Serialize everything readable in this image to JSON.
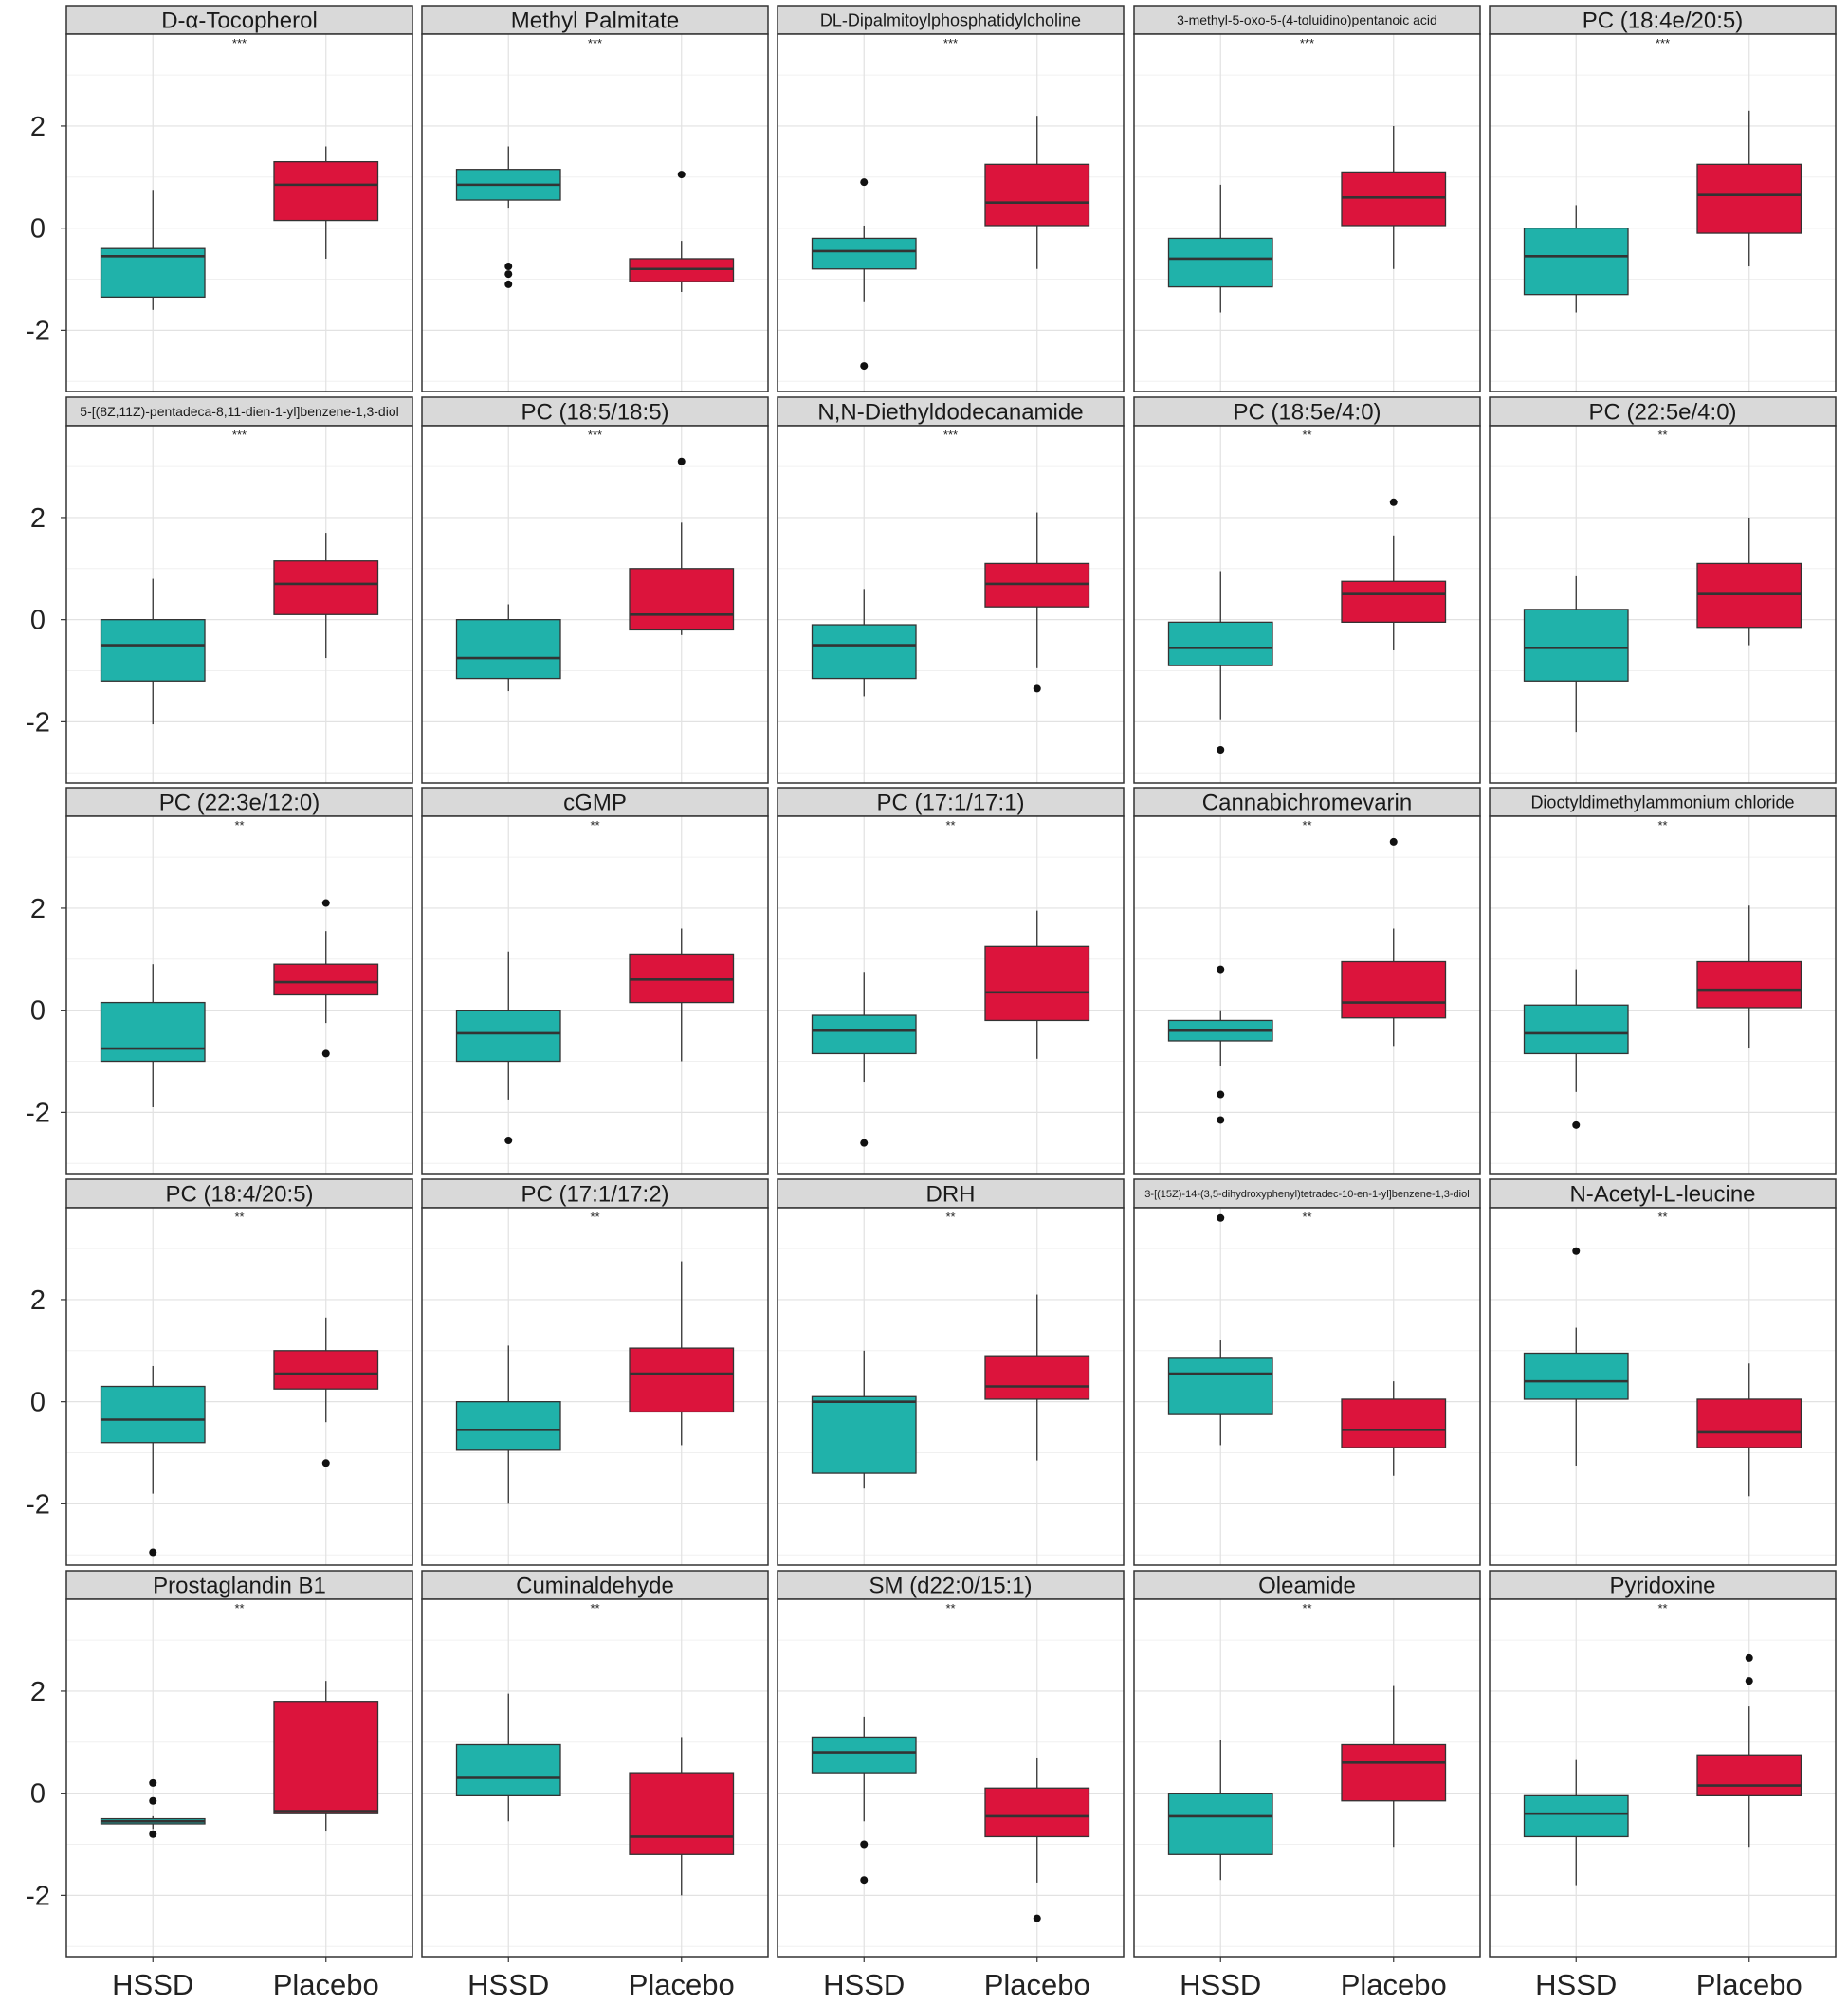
{
  "chart_data": {
    "type": "box",
    "layout": "facet grid 5 x 5, shared y axis",
    "categories": [
      "HSSD",
      "Placebo"
    ],
    "colors": {
      "HSSD": "#20b2aa",
      "Placebo": "#dc143c"
    },
    "y_ticks": [
      "-2",
      "0",
      "2"
    ],
    "ylim": [
      -3.2,
      3.8
    ],
    "grid": true,
    "panels": [
      {
        "title": "D-α-Tocopherol",
        "sig": "***",
        "boxes": [
          {
            "q1": -1.35,
            "median": -0.55,
            "q3": -0.4,
            "whisker_low": -1.6,
            "whisker_high": 0.75,
            "outliers": []
          },
          {
            "q1": 0.15,
            "median": 0.85,
            "q3": 1.3,
            "whisker_low": -0.6,
            "whisker_high": 1.6,
            "outliers": []
          }
        ]
      },
      {
        "title": "Methyl Palmitate",
        "sig": "***",
        "boxes": [
          {
            "q1": 0.55,
            "median": 0.85,
            "q3": 1.15,
            "whisker_low": 0.4,
            "whisker_high": 1.6,
            "outliers": [
              -0.75,
              -0.9,
              -1.1
            ]
          },
          {
            "q1": -1.05,
            "median": -0.8,
            "q3": -0.6,
            "whisker_low": -1.25,
            "whisker_high": -0.25,
            "outliers": [
              1.05
            ]
          }
        ]
      },
      {
        "title": "DL-Dipalmitoylphosphatidylcholine",
        "sig": "***",
        "boxes": [
          {
            "q1": -0.8,
            "median": -0.45,
            "q3": -0.2,
            "whisker_low": -1.45,
            "whisker_high": 0.05,
            "outliers": [
              0.9,
              -2.7
            ]
          },
          {
            "q1": 0.05,
            "median": 0.5,
            "q3": 1.25,
            "whisker_low": -0.8,
            "whisker_high": 2.2,
            "outliers": []
          }
        ]
      },
      {
        "title": "3-methyl-5-oxo-5-(4-toluidino)pentanoic acid",
        "sig": "***",
        "boxes": [
          {
            "q1": -1.15,
            "median": -0.6,
            "q3": -0.2,
            "whisker_low": -1.65,
            "whisker_high": 0.85,
            "outliers": []
          },
          {
            "q1": 0.05,
            "median": 0.6,
            "q3": 1.1,
            "whisker_low": -0.8,
            "whisker_high": 2.0,
            "outliers": []
          }
        ]
      },
      {
        "title": "PC (18:4e/20:5)",
        "sig": "***",
        "boxes": [
          {
            "q1": -1.3,
            "median": -0.55,
            "q3": 0.0,
            "whisker_low": -1.65,
            "whisker_high": 0.45,
            "outliers": []
          },
          {
            "q1": -0.1,
            "median": 0.65,
            "q3": 1.25,
            "whisker_low": -0.75,
            "whisker_high": 2.3,
            "outliers": []
          }
        ]
      },
      {
        "title": "5-[(8Z,11Z)-pentadeca-8,11-dien-1-yl]benzene-1,3-diol",
        "sig": "***",
        "boxes": [
          {
            "q1": -1.2,
            "median": -0.5,
            "q3": 0.0,
            "whisker_low": -2.05,
            "whisker_high": 0.8,
            "outliers": []
          },
          {
            "q1": 0.1,
            "median": 0.7,
            "q3": 1.15,
            "whisker_low": -0.75,
            "whisker_high": 1.7,
            "outliers": []
          }
        ]
      },
      {
        "title": "PC (18:5/18:5)",
        "sig": "***",
        "boxes": [
          {
            "q1": -1.15,
            "median": -0.75,
            "q3": 0.0,
            "whisker_low": -1.4,
            "whisker_high": 0.3,
            "outliers": []
          },
          {
            "q1": -0.2,
            "median": 0.1,
            "q3": 1.0,
            "whisker_low": -0.3,
            "whisker_high": 1.9,
            "outliers": [
              3.1
            ]
          }
        ]
      },
      {
        "title": "N,N-Diethyldodecanamide",
        "sig": "***",
        "boxes": [
          {
            "q1": -1.15,
            "median": -0.5,
            "q3": -0.1,
            "whisker_low": -1.5,
            "whisker_high": 0.6,
            "outliers": []
          },
          {
            "q1": 0.25,
            "median": 0.7,
            "q3": 1.1,
            "whisker_low": -0.95,
            "whisker_high": 2.1,
            "outliers": [
              -1.35
            ]
          }
        ]
      },
      {
        "title": "PC (18:5e/4:0)",
        "sig": "**",
        "boxes": [
          {
            "q1": -0.9,
            "median": -0.55,
            "q3": -0.05,
            "whisker_low": -1.95,
            "whisker_high": 0.95,
            "outliers": [
              -2.55
            ]
          },
          {
            "q1": -0.05,
            "median": 0.5,
            "q3": 0.75,
            "whisker_low": -0.6,
            "whisker_high": 1.65,
            "outliers": [
              2.3
            ]
          }
        ]
      },
      {
        "title": "PC (22:5e/4:0)",
        "sig": "**",
        "boxes": [
          {
            "q1": -1.2,
            "median": -0.55,
            "q3": 0.2,
            "whisker_low": -2.2,
            "whisker_high": 0.85,
            "outliers": []
          },
          {
            "q1": -0.15,
            "median": 0.5,
            "q3": 1.1,
            "whisker_low": -0.5,
            "whisker_high": 2.0,
            "outliers": []
          }
        ]
      },
      {
        "title": "PC (22:3e/12:0)",
        "sig": "**",
        "boxes": [
          {
            "q1": -1.0,
            "median": -0.75,
            "q3": 0.15,
            "whisker_low": -1.9,
            "whisker_high": 0.9,
            "outliers": []
          },
          {
            "q1": 0.3,
            "median": 0.55,
            "q3": 0.9,
            "whisker_low": -0.25,
            "whisker_high": 1.55,
            "outliers": [
              2.1,
              -0.85
            ]
          }
        ]
      },
      {
        "title": "cGMP",
        "sig": "**",
        "boxes": [
          {
            "q1": -1.0,
            "median": -0.45,
            "q3": 0.0,
            "whisker_low": -1.75,
            "whisker_high": 1.15,
            "outliers": [
              -2.55
            ]
          },
          {
            "q1": 0.15,
            "median": 0.6,
            "q3": 1.1,
            "whisker_low": -1.0,
            "whisker_high": 1.6,
            "outliers": []
          }
        ]
      },
      {
        "title": "PC (17:1/17:1)",
        "sig": "**",
        "boxes": [
          {
            "q1": -0.85,
            "median": -0.4,
            "q3": -0.1,
            "whisker_low": -1.4,
            "whisker_high": 0.75,
            "outliers": [
              -2.6
            ]
          },
          {
            "q1": -0.2,
            "median": 0.35,
            "q3": 1.25,
            "whisker_low": -0.95,
            "whisker_high": 1.95,
            "outliers": []
          }
        ]
      },
      {
        "title": "Cannabichromevarin",
        "sig": "**",
        "boxes": [
          {
            "q1": -0.6,
            "median": -0.4,
            "q3": -0.2,
            "whisker_low": -1.1,
            "whisker_high": 0.0,
            "outliers": [
              0.8,
              -1.65,
              -2.15
            ]
          },
          {
            "q1": -0.15,
            "median": 0.15,
            "q3": 0.95,
            "whisker_low": -0.7,
            "whisker_high": 1.6,
            "outliers": [
              3.3
            ]
          }
        ]
      },
      {
        "title": "Dioctyldimethylammonium chloride",
        "sig": "**",
        "boxes": [
          {
            "q1": -0.85,
            "median": -0.45,
            "q3": 0.1,
            "whisker_low": -1.6,
            "whisker_high": 0.8,
            "outliers": [
              -2.25
            ]
          },
          {
            "q1": 0.05,
            "median": 0.4,
            "q3": 0.95,
            "whisker_low": -0.75,
            "whisker_high": 2.05,
            "outliers": []
          }
        ]
      },
      {
        "title": "PC (18:4/20:5)",
        "sig": "**",
        "boxes": [
          {
            "q1": -0.8,
            "median": -0.35,
            "q3": 0.3,
            "whisker_low": -1.8,
            "whisker_high": 0.7,
            "outliers": [
              -2.95
            ]
          },
          {
            "q1": 0.25,
            "median": 0.55,
            "q3": 1.0,
            "whisker_low": -0.4,
            "whisker_high": 1.65,
            "outliers": [
              -1.2
            ]
          }
        ]
      },
      {
        "title": "PC (17:1/17:2)",
        "sig": "**",
        "boxes": [
          {
            "q1": -0.95,
            "median": -0.55,
            "q3": 0.0,
            "whisker_low": -2.0,
            "whisker_high": 1.1,
            "outliers": []
          },
          {
            "q1": -0.2,
            "median": 0.55,
            "q3": 1.05,
            "whisker_low": -0.85,
            "whisker_high": 2.75,
            "outliers": []
          }
        ]
      },
      {
        "title": "DRH",
        "sig": "**",
        "boxes": [
          {
            "q1": -1.4,
            "median": -0.0,
            "q3": 0.1,
            "whisker_low": -1.7,
            "whisker_high": 1.0,
            "outliers": []
          },
          {
            "q1": 0.05,
            "median": 0.3,
            "q3": 0.9,
            "whisker_low": -1.15,
            "whisker_high": 2.1,
            "outliers": []
          }
        ]
      },
      {
        "title": "3-[(15Z)-14-(3,5-dihydroxyphenyl)tetradec-10-en-1-yl]benzene-1,3-diol",
        "sig": "**",
        "boxes": [
          {
            "q1": -0.25,
            "median": 0.55,
            "q3": 0.85,
            "whisker_low": -0.85,
            "whisker_high": 1.2,
            "outliers": [
              3.6
            ]
          },
          {
            "q1": -0.9,
            "median": -0.55,
            "q3": 0.05,
            "whisker_low": -1.45,
            "whisker_high": 0.4,
            "outliers": []
          }
        ]
      },
      {
        "title": "N-Acetyl-L-leucine",
        "sig": "**",
        "boxes": [
          {
            "q1": 0.05,
            "median": 0.4,
            "q3": 0.95,
            "whisker_low": -1.25,
            "whisker_high": 1.45,
            "outliers": [
              2.95
            ]
          },
          {
            "q1": -0.9,
            "median": -0.6,
            "q3": 0.05,
            "whisker_low": -1.85,
            "whisker_high": 0.75,
            "outliers": []
          }
        ]
      },
      {
        "title": "Prostaglandin B1",
        "sig": "**",
        "boxes": [
          {
            "q1": -0.6,
            "median": -0.55,
            "q3": -0.5,
            "whisker_low": -0.7,
            "whisker_high": -0.45,
            "outliers": [
              0.2,
              -0.15,
              -0.8
            ]
          },
          {
            "q1": -0.4,
            "median": -0.35,
            "q3": 1.8,
            "whisker_low": -0.75,
            "whisker_high": 2.2,
            "outliers": []
          }
        ]
      },
      {
        "title": "Cuminaldehyde",
        "sig": "**",
        "boxes": [
          {
            "q1": -0.05,
            "median": 0.3,
            "q3": 0.95,
            "whisker_low": -0.55,
            "whisker_high": 1.95,
            "outliers": []
          },
          {
            "q1": -1.2,
            "median": -0.85,
            "q3": 0.4,
            "whisker_low": -2.0,
            "whisker_high": 1.1,
            "outliers": []
          }
        ]
      },
      {
        "title": "SM (d22:0/15:1)",
        "sig": "**",
        "boxes": [
          {
            "q1": 0.4,
            "median": 0.8,
            "q3": 1.1,
            "whisker_low": -0.55,
            "whisker_high": 1.5,
            "outliers": [
              -1.0,
              -1.7
            ]
          },
          {
            "q1": -0.85,
            "median": -0.45,
            "q3": 0.1,
            "whisker_low": -1.75,
            "whisker_high": 0.7,
            "outliers": [
              -2.45
            ]
          }
        ]
      },
      {
        "title": "Oleamide",
        "sig": "**",
        "boxes": [
          {
            "q1": -1.2,
            "median": -0.45,
            "q3": 0.0,
            "whisker_low": -1.7,
            "whisker_high": 1.05,
            "outliers": []
          },
          {
            "q1": -0.15,
            "median": 0.6,
            "q3": 0.95,
            "whisker_low": -1.05,
            "whisker_high": 2.1,
            "outliers": []
          }
        ]
      },
      {
        "title": "Pyridoxine",
        "sig": "**",
        "boxes": [
          {
            "q1": -0.85,
            "median": -0.4,
            "q3": -0.05,
            "whisker_low": -1.8,
            "whisker_high": 0.65,
            "outliers": []
          },
          {
            "q1": -0.05,
            "median": 0.15,
            "q3": 0.75,
            "whisker_low": -1.05,
            "whisker_high": 1.7,
            "outliers": [
              2.65,
              2.2
            ]
          }
        ]
      }
    ]
  }
}
